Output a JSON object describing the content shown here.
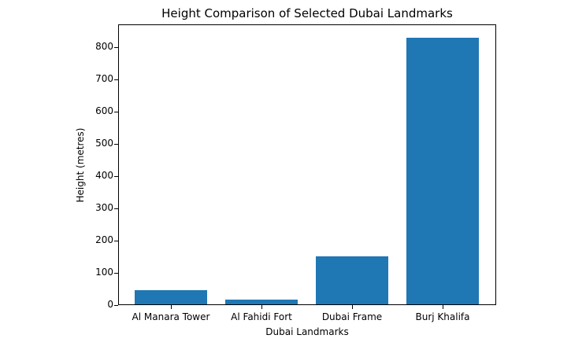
{
  "chart_data": {
    "type": "bar",
    "title": "Height Comparison of Selected Dubai Landmarks",
    "xlabel": "Dubai Landmarks",
    "ylabel": "Height (metres)",
    "categories": [
      "Al Manara Tower",
      "Al Fahidi Fort",
      "Dubai Frame",
      "Burj Khalifa"
    ],
    "values": [
      44,
      15,
      150,
      828
    ],
    "ylim": [
      0,
      870
    ],
    "yticks": [
      0,
      100,
      200,
      300,
      400,
      500,
      600,
      700,
      800
    ],
    "grid": false,
    "bar_color": "#1f77b4"
  }
}
